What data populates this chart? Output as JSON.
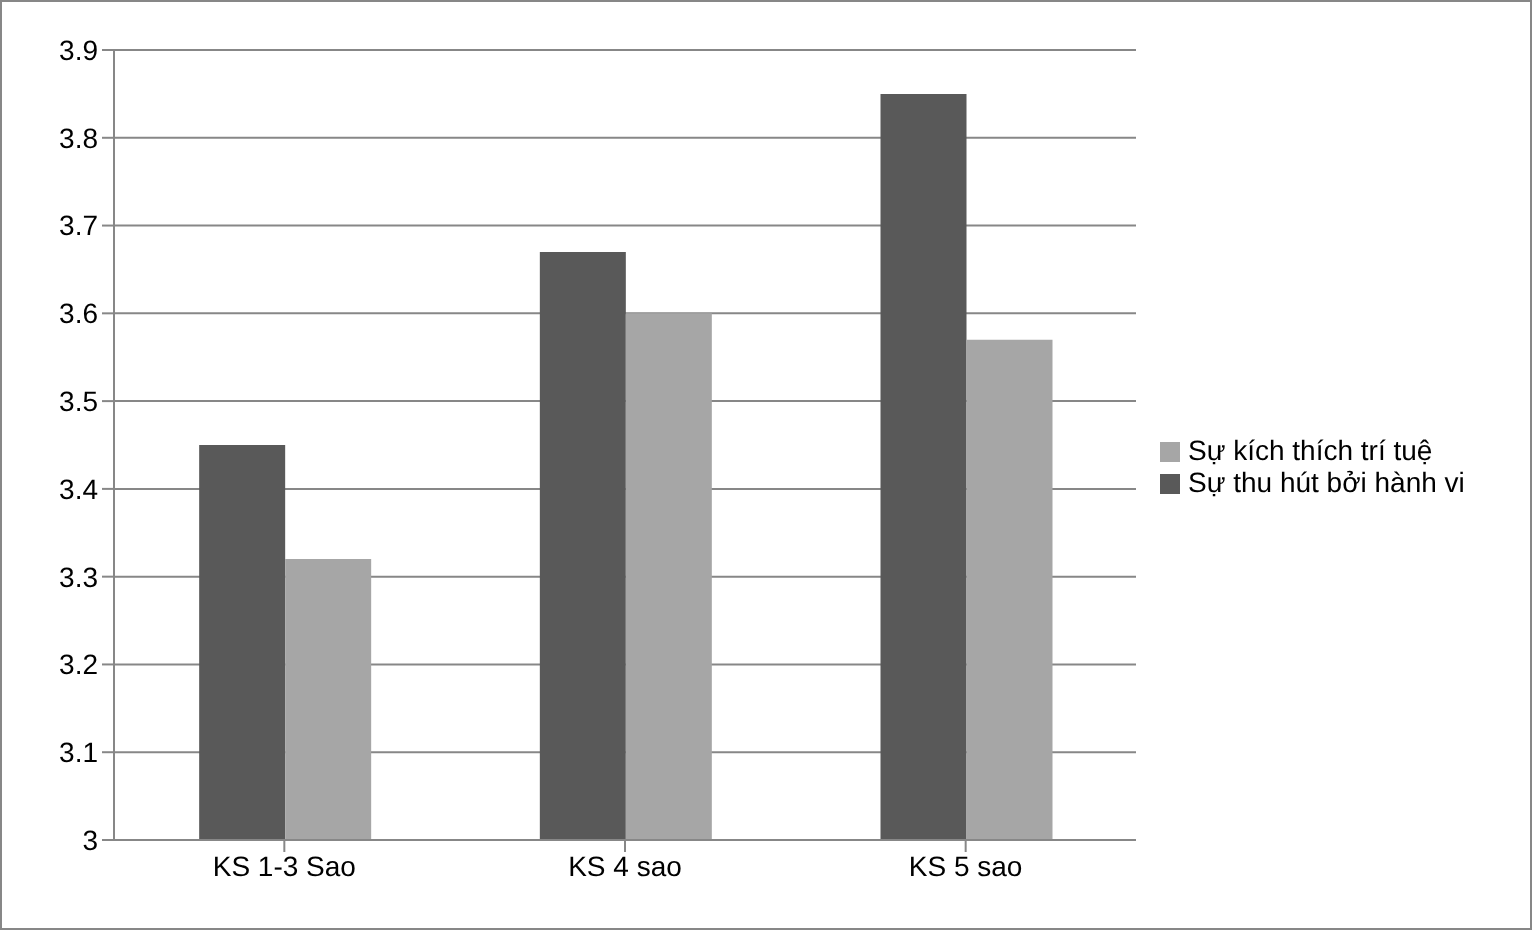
{
  "chart_data": {
    "type": "bar",
    "categories": [
      "KS 1-3 Sao",
      "KS 4 sao",
      "KS 5 sao"
    ],
    "series": [
      {
        "name": "Sự thu hút bởi hành vi",
        "color": "#595959",
        "values": [
          3.45,
          3.67,
          3.85
        ]
      },
      {
        "name": "Sự kích thích trí tuệ",
        "color": "#a6a6a6",
        "values": [
          3.32,
          3.6,
          3.57
        ]
      }
    ],
    "ylim": [
      3,
      3.9
    ],
    "yticks": [
      3,
      3.1,
      3.2,
      3.3,
      3.4,
      3.5,
      3.6,
      3.7,
      3.8,
      3.9
    ],
    "grid": "y",
    "legend": "right"
  }
}
